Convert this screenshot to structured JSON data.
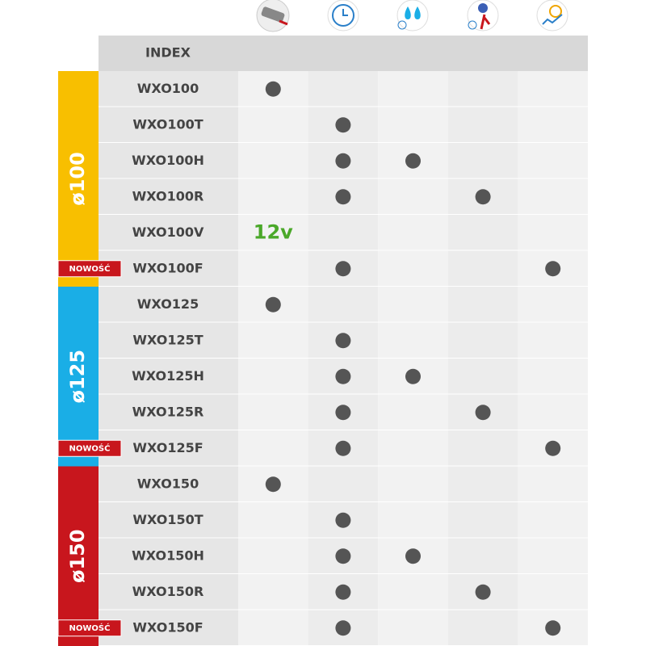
{
  "table": {
    "header": "INDEX",
    "groups": [
      {
        "label": "ø100",
        "color": "#f8bf00",
        "rows": [
          {
            "name": "WXO100",
            "cells": [
              true,
              false,
              false,
              false,
              false
            ]
          },
          {
            "name": "WXO100T",
            "cells": [
              false,
              true,
              false,
              false,
              false
            ]
          },
          {
            "name": "WXO100H",
            "cells": [
              false,
              true,
              true,
              false,
              false
            ]
          },
          {
            "name": "WXO100R",
            "cells": [
              false,
              true,
              false,
              true,
              false
            ]
          },
          {
            "name": "WXO100V",
            "cells": [
              "12v",
              false,
              false,
              false,
              false
            ]
          },
          {
            "name": "WXO100F",
            "badge": "NOWOŚĆ",
            "cells": [
              false,
              true,
              false,
              false,
              true
            ]
          }
        ]
      },
      {
        "label": "ø125",
        "color": "#1aaee6",
        "rows": [
          {
            "name": "WXO125",
            "cells": [
              true,
              false,
              false,
              false,
              false
            ]
          },
          {
            "name": "WXO125T",
            "cells": [
              false,
              true,
              false,
              false,
              false
            ]
          },
          {
            "name": "WXO125H",
            "cells": [
              false,
              true,
              true,
              false,
              false
            ]
          },
          {
            "name": "WXO125R",
            "cells": [
              false,
              true,
              false,
              true,
              false
            ]
          },
          {
            "name": "WXO125F",
            "badge": "NOWOŚĆ",
            "cells": [
              false,
              true,
              false,
              false,
              true
            ]
          }
        ]
      },
      {
        "label": "ø150",
        "color": "#c8161d",
        "rows": [
          {
            "name": "WXO150",
            "cells": [
              true,
              false,
              false,
              false,
              false
            ]
          },
          {
            "name": "WXO150T",
            "cells": [
              false,
              true,
              false,
              false,
              false
            ]
          },
          {
            "name": "WXO150H",
            "cells": [
              false,
              true,
              true,
              false,
              false
            ]
          },
          {
            "name": "WXO150R",
            "cells": [
              false,
              true,
              false,
              true,
              false
            ]
          },
          {
            "name": "WXO150F",
            "badge": "NOWOŚĆ",
            "cells": [
              false,
              true,
              false,
              false,
              true
            ]
          }
        ]
      }
    ]
  }
}
